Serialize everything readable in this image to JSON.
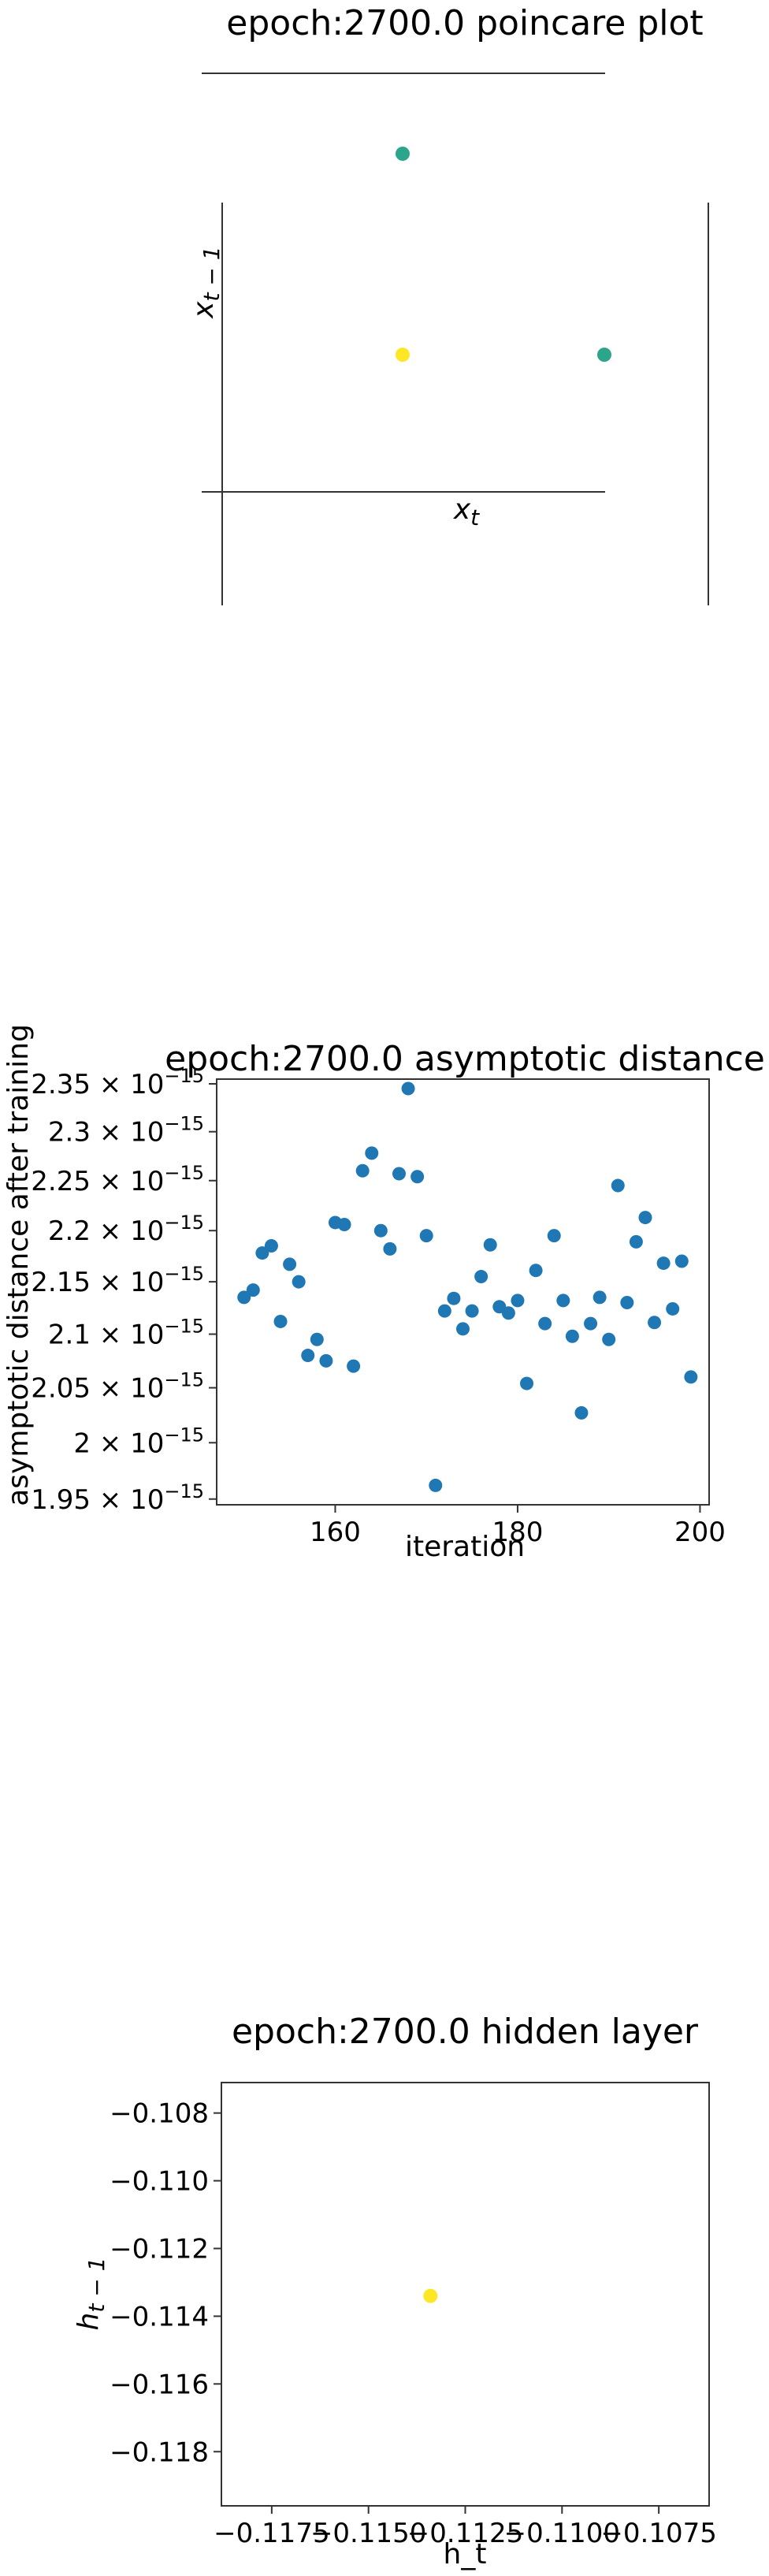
{
  "chart_data": [
    {
      "type": "scatter",
      "title": "epoch:2700.0 poincare plot",
      "xlabel": "x_t",
      "ylabel": "x_{t-1}",
      "points": [
        {
          "x": 0.0,
          "y": 1.0,
          "color": "#2ca58d"
        },
        {
          "x": 0.0,
          "y": 0.0,
          "color": "#fde725"
        },
        {
          "x": 1.0,
          "y": 0.0,
          "color": "#2ca58d"
        }
      ],
      "grid": false
    },
    {
      "type": "scatter",
      "title": "epoch:2700.0 asymptotic distance",
      "xlabel": "iteration",
      "ylabel": "asymptotic distance after training",
      "xlim": [
        147,
        201
      ],
      "ylim": [
        1.945e-15,
        2.355e-15
      ],
      "yscale": "log",
      "color": "#1f77b4",
      "x_ticks": [
        {
          "value": 160,
          "label": "160"
        },
        {
          "value": 180,
          "label": "180"
        },
        {
          "value": 200,
          "label": "200"
        }
      ],
      "y_ticks": [
        {
          "value": 1.95e-15,
          "mantissa": "1.95",
          "exp": "−15"
        },
        {
          "value": 2e-15,
          "mantissa": "2",
          "exp": "−15"
        },
        {
          "value": 2.05e-15,
          "mantissa": "2.05",
          "exp": "−15"
        },
        {
          "value": 2.1e-15,
          "mantissa": "2.1",
          "exp": "−15"
        },
        {
          "value": 2.15e-15,
          "mantissa": "2.15",
          "exp": "−15"
        },
        {
          "value": 2.2e-15,
          "mantissa": "2.2",
          "exp": "−15"
        },
        {
          "value": 2.25e-15,
          "mantissa": "2.25",
          "exp": "−15"
        },
        {
          "value": 2.3e-15,
          "mantissa": "2.3",
          "exp": "−15"
        },
        {
          "value": 2.35e-15,
          "mantissa": "2.35",
          "exp": "−15"
        }
      ],
      "x": [
        150,
        151,
        152,
        153,
        154,
        155,
        156,
        157,
        158,
        159,
        160,
        161,
        162,
        163,
        164,
        165,
        166,
        167,
        168,
        169,
        170,
        171,
        172,
        173,
        174,
        175,
        176,
        177,
        178,
        179,
        180,
        181,
        182,
        183,
        184,
        185,
        186,
        187,
        188,
        189,
        190,
        191,
        192,
        193,
        194,
        195,
        196,
        197,
        198,
        199
      ],
      "y": [
        2.135e-15,
        2.142e-15,
        2.178e-15,
        2.185e-15,
        2.112e-15,
        2.167e-15,
        2.15e-15,
        2.08e-15,
        2.095e-15,
        2.075e-15,
        2.208e-15,
        2.206e-15,
        2.07e-15,
        2.26e-15,
        2.278e-15,
        2.2e-15,
        2.182e-15,
        2.257e-15,
        2.345e-15,
        2.254e-15,
        2.195e-15,
        1.962e-15,
        2.122e-15,
        2.134e-15,
        2.105e-15,
        2.122e-15,
        2.155e-15,
        2.186e-15,
        2.126e-15,
        2.12e-15,
        2.132e-15,
        2.054e-15,
        2.161e-15,
        2.11e-15,
        2.195e-15,
        2.132e-15,
        2.098e-15,
        2.027e-15,
        2.11e-15,
        2.135e-15,
        2.095e-15,
        2.245e-15,
        2.13e-15,
        2.189e-15,
        2.213e-15,
        2.111e-15,
        2.168e-15,
        2.124e-15,
        2.17e-15,
        2.06e-15
      ],
      "grid": false
    },
    {
      "type": "scatter",
      "title": "epoch:2700.0 hidden layer",
      "xlabel": "h_t",
      "ylabel": "h_{t-1}",
      "xlim": [
        -0.1188,
        -0.1062
      ],
      "ylim": [
        -0.1196,
        -0.1071
      ],
      "x_ticks": [
        {
          "value": -0.1175,
          "label": "−0.1175"
        },
        {
          "value": -0.115,
          "label": "−0.1150"
        },
        {
          "value": -0.1125,
          "label": "−0.1125"
        },
        {
          "value": -0.11,
          "label": "−0.1100"
        },
        {
          "value": -0.1075,
          "label": "−0.1075"
        }
      ],
      "y_ticks": [
        {
          "value": -0.108,
          "label": "−0.108"
        },
        {
          "value": -0.11,
          "label": "−0.110"
        },
        {
          "value": -0.112,
          "label": "−0.112"
        },
        {
          "value": -0.114,
          "label": "−0.114"
        },
        {
          "value": -0.116,
          "label": "−0.116"
        },
        {
          "value": -0.118,
          "label": "−0.118"
        }
      ],
      "points": [
        {
          "x": -0.1134,
          "y": -0.1134,
          "color": "#fde725"
        }
      ],
      "grid": false
    }
  ]
}
